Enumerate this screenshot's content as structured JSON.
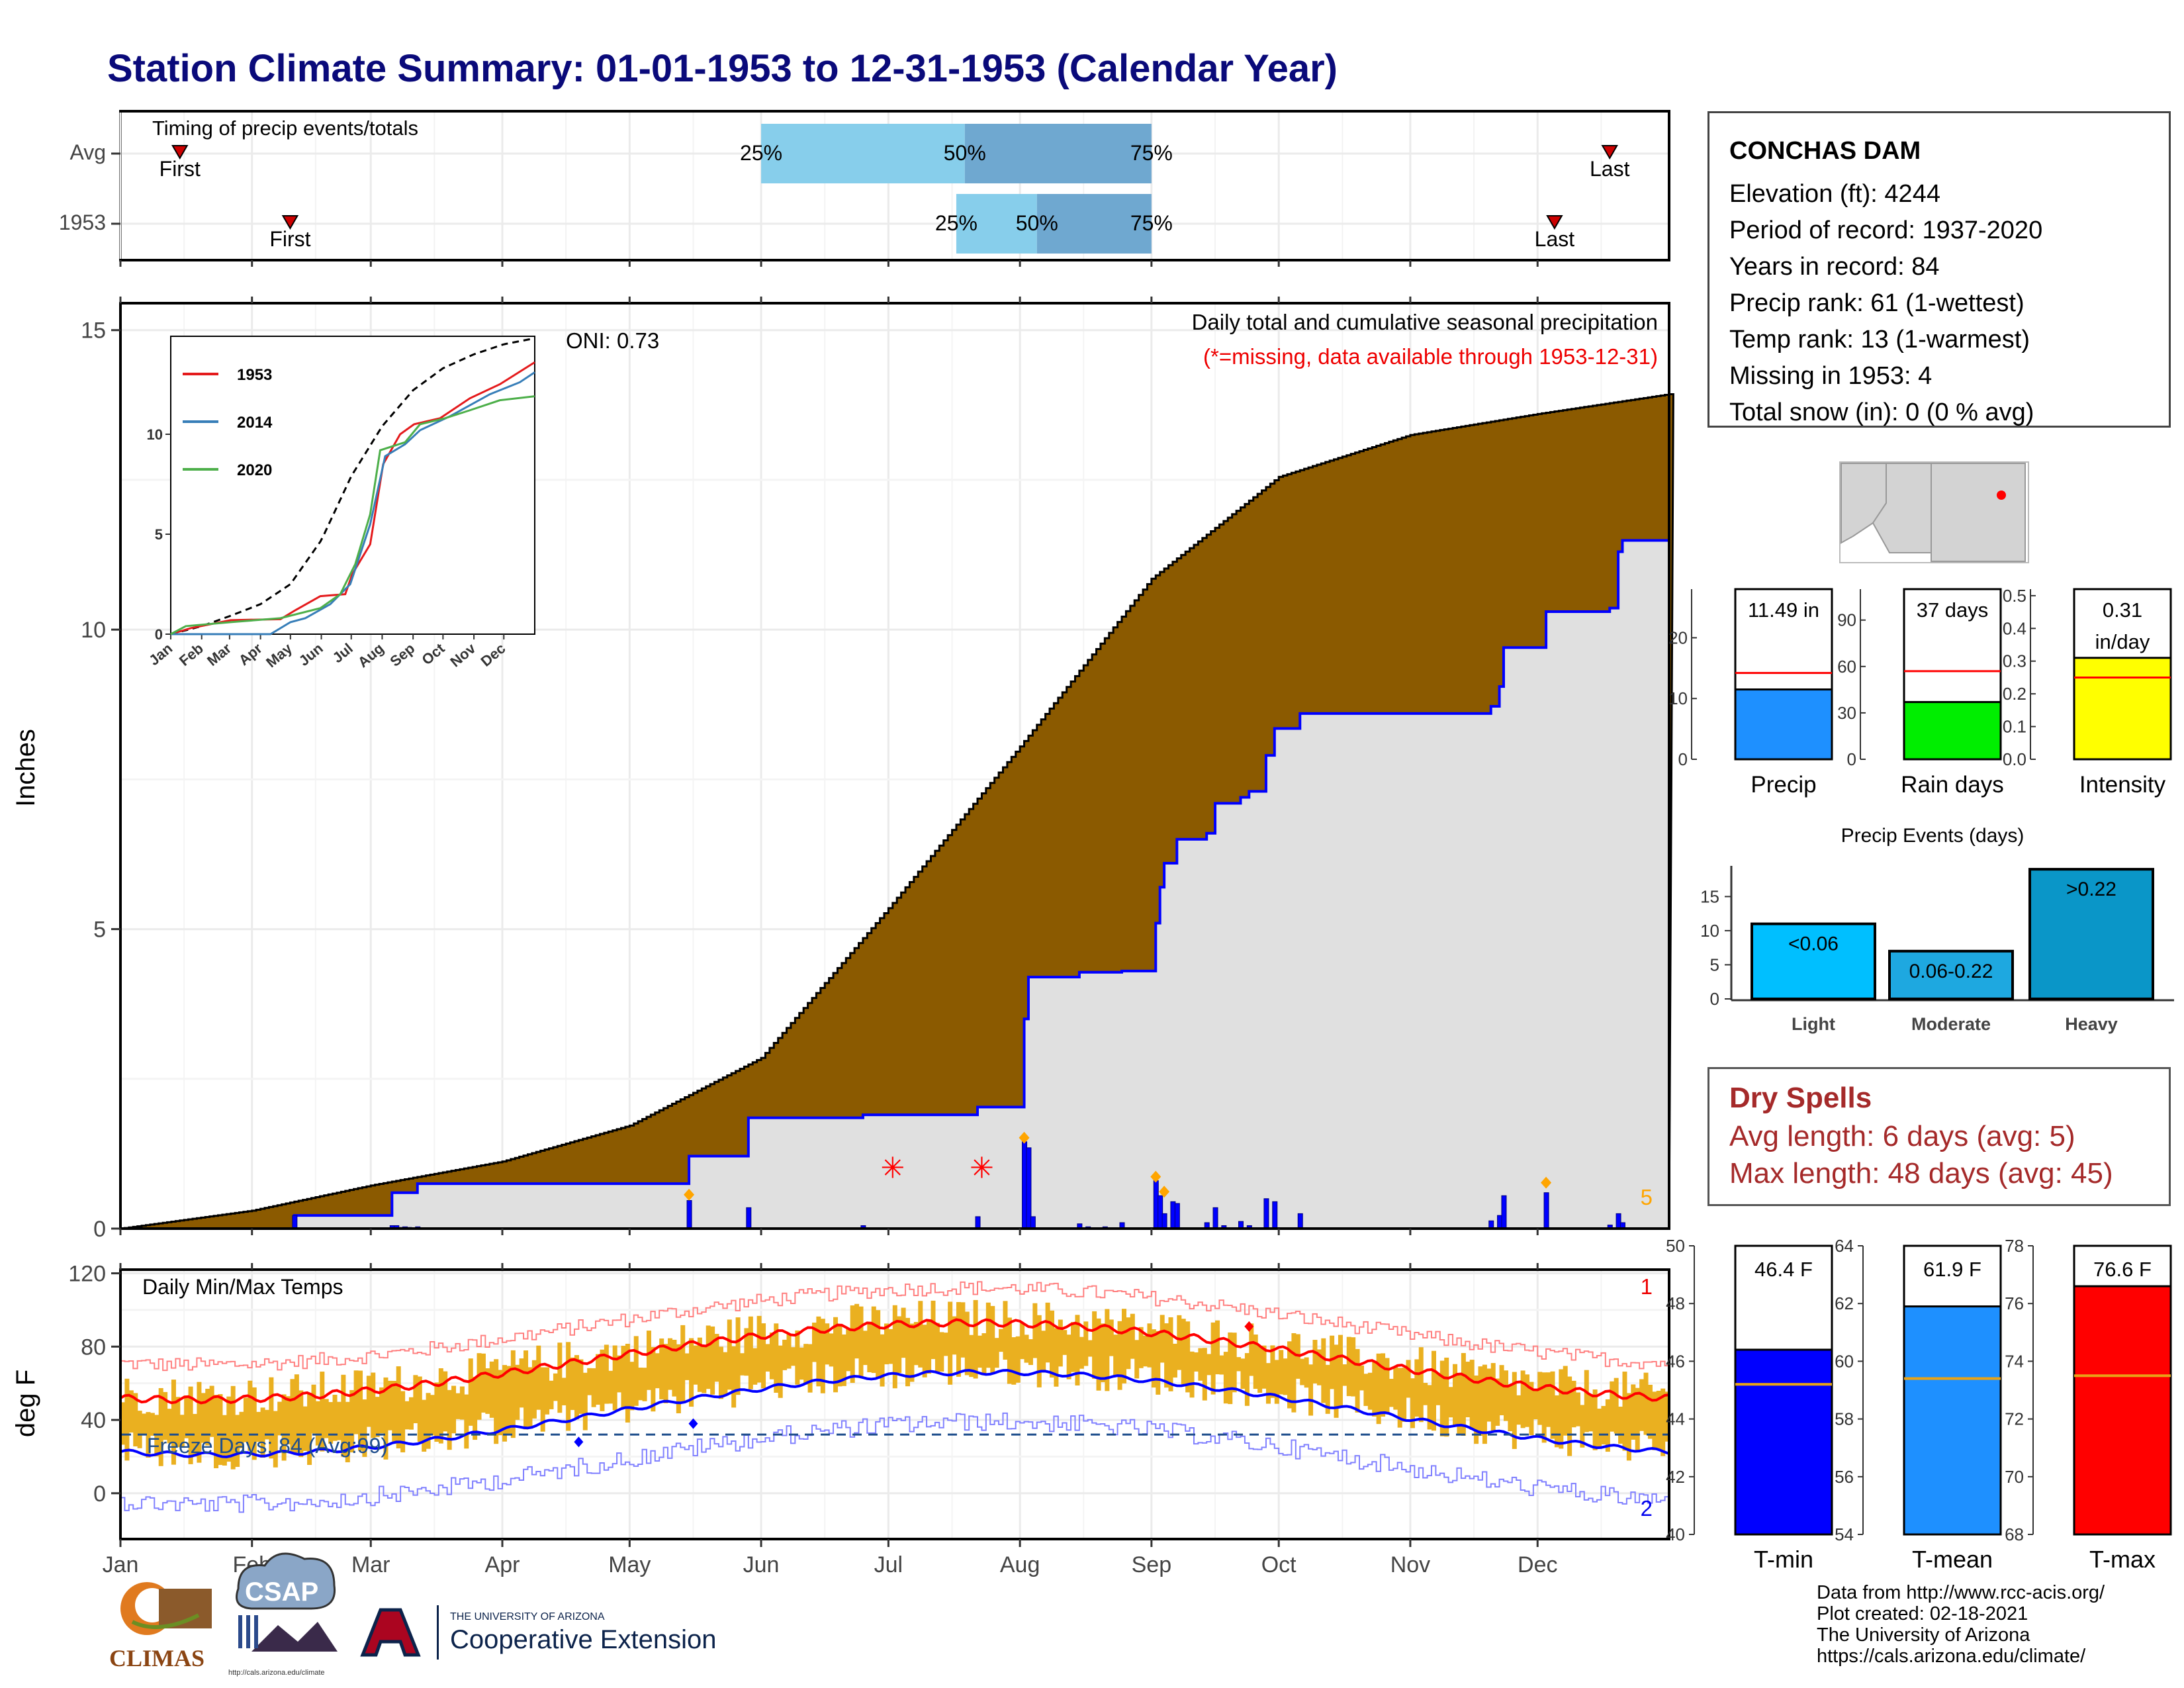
{
  "title": "Station Climate Summary: 01-01-1953 to 12-31-1953 (Calendar Year)",
  "timing": {
    "label": "Timing of precip events/totals",
    "rows": [
      "Avg",
      "1953"
    ],
    "first_label": "First",
    "last_label": "Last",
    "avg": {
      "first": "Jan 15",
      "p25": "Jun 1",
      "p50": "Jul 19",
      "p75": "Sep 1",
      "last": "Dec 18"
    },
    "y1953": {
      "first": "Feb 10",
      "p25": "Jul 17",
      "p50": "Aug 5",
      "p75": "Sep 1",
      "last": "Dec 5"
    },
    "pct_labels": [
      "25%",
      "50%",
      "75%"
    ],
    "colors": {
      "light": "#87ceeb",
      "dark": "#6fa8d0"
    }
  },
  "precip_panel": {
    "title": "Daily total and cumulative seasonal precipitation",
    "subtitle": "(*=missing, data available through 1953-12-31)",
    "oni": "ONI: 0.73",
    "ylabel": "Inches",
    "yticks": [
      "0",
      "5",
      "10",
      "15"
    ],
    "corner_label": "5"
  },
  "inset": {
    "legend": [
      "1953",
      "2014",
      "2020"
    ],
    "colors": [
      "#e41a1c",
      "#377eb8",
      "#4daf4a"
    ],
    "yticks": [
      "0",
      "5",
      "10"
    ],
    "months": [
      "Jan",
      "Feb",
      "Mar",
      "Apr",
      "May",
      "Jun",
      "Jul",
      "Aug",
      "Sep",
      "Oct",
      "Nov",
      "Dec"
    ]
  },
  "temp_panel": {
    "title": "Daily Min/Max Temps",
    "ylabel": "deg F",
    "yticks": [
      "0",
      "40",
      "80",
      "120"
    ],
    "freeze_label": "Freeze Days: 84 (Avg:99)",
    "top_right": "1",
    "bottom_right": "2"
  },
  "months": [
    "Jan",
    "Feb",
    "Mar",
    "Apr",
    "May",
    "Jun",
    "Jul",
    "Aug",
    "Sep",
    "Oct",
    "Nov",
    "Dec"
  ],
  "station": {
    "name": "CONCHAS DAM",
    "lines": [
      "Elevation (ft): 4244",
      "Period of record: 1937-2020",
      "Years in record: 84",
      "Precip rank: 61 (1-wettest)",
      "Temp rank: 13 (1-warmest)",
      "Missing in 1953: 4",
      "Total snow (in): 0 (0 % avg)"
    ]
  },
  "precip_bars": {
    "precip": {
      "label": "Precip",
      "value_text": "11.49 in",
      "value": 11.49,
      "avg": 14.2,
      "yticks": [
        "0",
        "10",
        "20"
      ],
      "color": "#1e90ff"
    },
    "rain_days": {
      "label": "Rain days",
      "value_text": "37 days",
      "value": 37,
      "avg": 57,
      "yticks": [
        "0",
        "30",
        "60",
        "90"
      ],
      "color": "#00ee00"
    },
    "intensity": {
      "label": "Intensity",
      "value_text": "0.31",
      "value_text2": "in/day",
      "value": 0.31,
      "avg": 0.25,
      "yticks": [
        "0.0",
        "0.1",
        "0.2",
        "0.3",
        "0.4",
        "0.5"
      ],
      "color": "#ffff00"
    }
  },
  "events": {
    "title": "Precip Events (days)",
    "categories": [
      "Light",
      "Moderate",
      "Heavy"
    ],
    "labels": [
      "<0.06",
      "0.06-0.22",
      ">0.22"
    ],
    "values": [
      11,
      7,
      19
    ],
    "yticks": [
      "0",
      "5",
      "10",
      "15"
    ],
    "colors": [
      "#00bfff",
      "#1ea8e0",
      "#0a96c8"
    ]
  },
  "dry_spells": {
    "title": "Dry Spells",
    "avg_line": "Avg length: 6 days (avg: 5)",
    "max_line": "Max length: 48 days (avg: 45)"
  },
  "temp_bars": {
    "tmin": {
      "label": "T-min",
      "value_text": "46.4 F",
      "value": 46.4,
      "avg": 45.2,
      "range": [
        40,
        50
      ],
      "yticks": [
        "40",
        "42",
        "44",
        "46",
        "48",
        "50"
      ],
      "color": "#0000ff"
    },
    "tmean": {
      "label": "T-mean",
      "value_text": "61.9 F",
      "value": 61.9,
      "avg": 59.4,
      "range": [
        54,
        64
      ],
      "yticks": [
        "54",
        "56",
        "58",
        "60",
        "62",
        "64"
      ],
      "color": "#1e90ff"
    },
    "tmax": {
      "label": "T-max",
      "value_text": "76.6 F",
      "value": 76.6,
      "avg": 73.5,
      "range": [
        68,
        78
      ],
      "yticks": [
        "68",
        "70",
        "72",
        "74",
        "76",
        "78"
      ],
      "color": "#ff0000"
    }
  },
  "credits": [
    "Data from http://www.rcc-acis.org/",
    "Plot created: 02-18-2021",
    "The University of Arizona",
    "https://cals.arizona.edu/climate/"
  ],
  "logos": {
    "climas": "CLIMAS",
    "csap": "CSAP",
    "csap_url": "http://cals.arizona.edu/climate",
    "ua_small": "THE UNIVERSITY OF ARIZONA",
    "ua_big": "Cooperative Extension"
  },
  "chart_data": [
    {
      "type": "area",
      "title": "Daily total and cumulative seasonal precipitation",
      "ylabel": "Inches",
      "ylim": [
        0,
        15
      ],
      "x": [
        "Jan 1",
        "Feb 1",
        "Mar 1",
        "Apr 1",
        "May 1",
        "Jun 1",
        "Jul 1",
        "Aug 1",
        "Sep 1",
        "Oct 1",
        "Nov 1",
        "Dec 1",
        "Dec 31"
      ],
      "series": [
        {
          "name": "Average cumulative",
          "values": [
            0,
            0.3,
            0.7,
            1.1,
            1.7,
            2.8,
            5.3,
            8.0,
            10.9,
            12.6,
            13.2,
            13.6,
            13.9
          ]
        },
        {
          "name": "1953 cumulative",
          "values": [
            0,
            0.2,
            0.75,
            0.75,
            0.75,
            1.4,
            1.9,
            4.2,
            8.6,
            8.7,
            10.3,
            10.6,
            11.5
          ]
        }
      ]
    },
    {
      "type": "line",
      "title": "Daily Min/Max Temps",
      "ylabel": "deg F",
      "ylim": [
        -20,
        120
      ],
      "x": [
        "Jan",
        "Feb",
        "Mar",
        "Apr",
        "May",
        "Jun",
        "Jul",
        "Aug",
        "Sep",
        "Oct",
        "Nov",
        "Dec"
      ],
      "series": [
        {
          "name": "Avg Max",
          "values": [
            52,
            57,
            63,
            72,
            81,
            90,
            93,
            91,
            85,
            74,
            61,
            52
          ]
        },
        {
          "name": "Avg Min",
          "values": [
            22,
            26,
            32,
            40,
            49,
            58,
            64,
            63,
            56,
            44,
            31,
            24
          ]
        },
        {
          "name": "Freeze line",
          "values": [
            32,
            32,
            32,
            32,
            32,
            32,
            32,
            32,
            32,
            32,
            32,
            32
          ]
        }
      ]
    },
    {
      "type": "bar",
      "title": "Precip Events (days)",
      "categories": [
        "Light",
        "Moderate",
        "Heavy"
      ],
      "values": [
        11,
        7,
        19
      ]
    }
  ]
}
